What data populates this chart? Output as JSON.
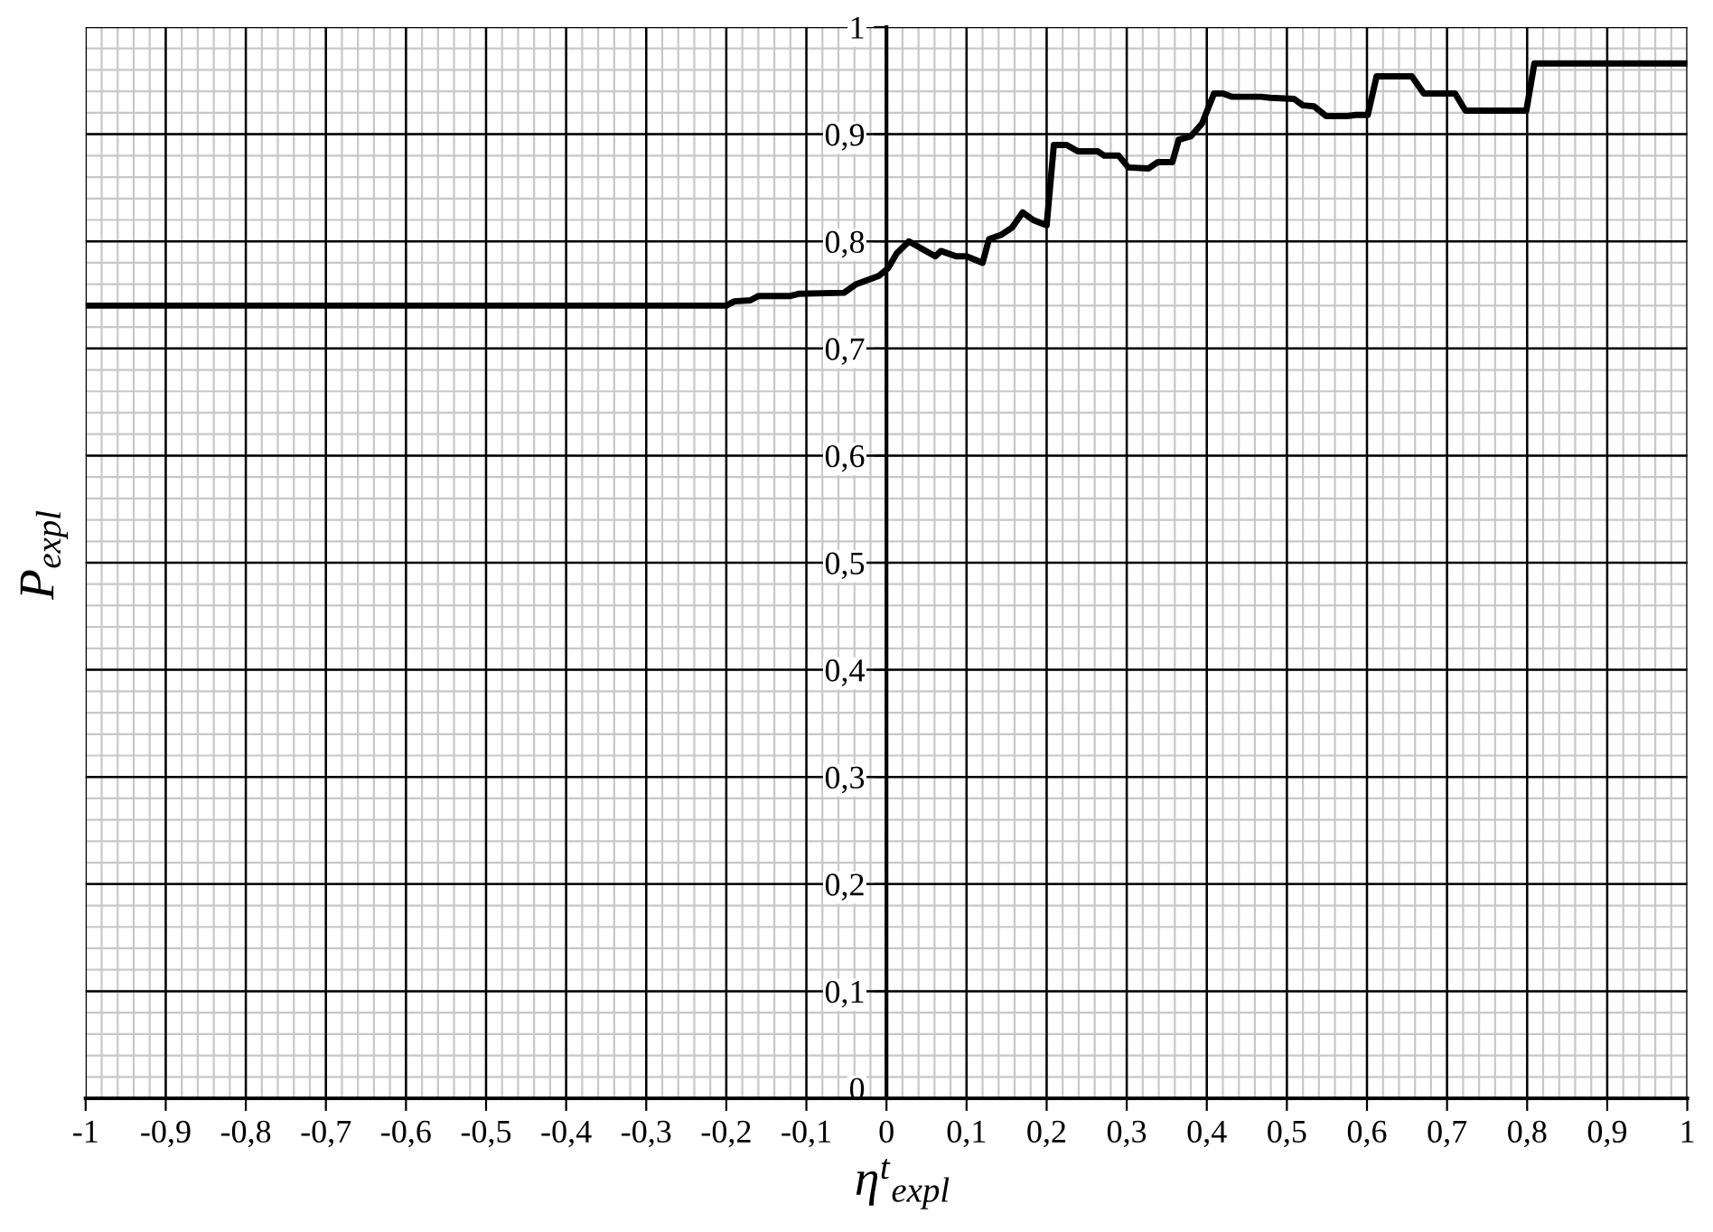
{
  "chart_data": {
    "type": "line",
    "xlabel": "η$^{t}$$_{expl}$",
    "ylabel": "P$_{expl}$",
    "series": [
      {
        "color": "#000000",
        "x": [
          -1,
          -0.242,
          -0.2,
          -0.19,
          -0.17,
          -0.16,
          -0.12,
          -0.11,
          -0.053,
          -0.038,
          -0.009,
          0.002,
          0.013,
          0.028,
          0.061,
          0.068,
          0.087,
          0.1,
          0.12,
          0.128,
          0.143,
          0.157,
          0.17,
          0.183,
          0.2,
          0.209,
          0.225,
          0.239,
          0.264,
          0.272,
          0.29,
          0.302,
          0.327,
          0.339,
          0.357,
          0.365,
          0.38,
          0.394,
          0.409,
          0.42,
          0.431,
          0.468,
          0.479,
          0.509,
          0.52,
          0.534,
          0.549,
          0.575,
          0.586,
          0.601,
          0.612,
          0.656,
          0.671,
          0.71,
          0.723,
          0.799,
          0.809,
          1.0
        ],
        "values": [
          0.74,
          0.74,
          0.74,
          0.744,
          0.745,
          0.749,
          0.749,
          0.751,
          0.752,
          0.76,
          0.768,
          0.775,
          0.789,
          0.8,
          0.786,
          0.791,
          0.786,
          0.786,
          0.78,
          0.802,
          0.806,
          0.813,
          0.827,
          0.82,
          0.815,
          0.89,
          0.89,
          0.884,
          0.884,
          0.88,
          0.88,
          0.869,
          0.868,
          0.874,
          0.874,
          0.895,
          0.898,
          0.91,
          0.938,
          0.938,
          0.935,
          0.935,
          0.934,
          0.933,
          0.927,
          0.926,
          0.917,
          0.917,
          0.918,
          0.918,
          0.954,
          0.954,
          0.938,
          0.938,
          0.922,
          0.922,
          0.966,
          0.966
        ]
      }
    ],
    "xlim": [
      -1,
      1
    ],
    "ylim": [
      0,
      1
    ],
    "xticks": [
      -1,
      {
        "value": -0.9,
        "label": "-0,9"
      },
      {
        "value": -0.8,
        "label": "-0,8"
      },
      {
        "value": -0.7,
        "label": "-0,7"
      },
      {
        "value": -0.6,
        "label": "-0,6"
      },
      {
        "value": -0.5,
        "label": "-0,5"
      },
      {
        "value": -0.4,
        "label": "-0,4"
      },
      {
        "value": -0.3,
        "label": "-0,3"
      },
      {
        "value": -0.2,
        "label": "-0,2"
      },
      {
        "value": -0.1,
        "label": "-0,1"
      },
      0,
      {
        "value": 0.1,
        "label": "0,1"
      },
      {
        "value": 0.2,
        "label": "0,2"
      },
      {
        "value": 0.3,
        "label": "0,3"
      },
      {
        "value": 0.4,
        "label": "0,4"
      },
      {
        "value": 0.5,
        "label": "0,5"
      },
      {
        "value": 0.6,
        "label": "0,6"
      },
      {
        "value": 0.7,
        "label": "0,7"
      },
      {
        "value": 0.8,
        "label": "0,8"
      },
      {
        "value": 0.9,
        "label": "0,9"
      },
      1
    ],
    "yticks": [
      {
        "value": 0,
        "label": "0"
      },
      {
        "value": 0.1,
        "label": "0,1"
      },
      {
        "value": 0.2,
        "label": "0,2"
      },
      {
        "value": 0.3,
        "label": "0,3"
      },
      {
        "value": 0.4,
        "label": "0,4"
      },
      {
        "value": 0.5,
        "label": "0,5"
      },
      {
        "value": 0.6,
        "label": "0,6"
      },
      {
        "value": 0.7,
        "label": "0,7"
      },
      {
        "value": 0.8,
        "label": "0,8"
      },
      {
        "value": 0.9,
        "label": "0,9"
      },
      {
        "value": 1,
        "label": "1"
      }
    ],
    "grid": true,
    "marker": "none",
    "line_style": "solid"
  }
}
